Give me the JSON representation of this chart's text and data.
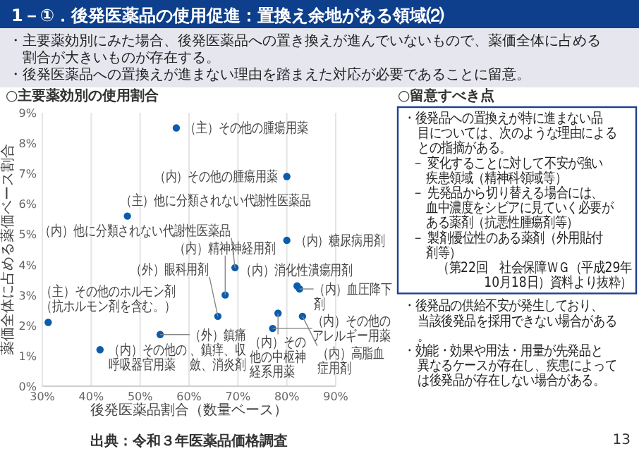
{
  "chart_data": [
    {
      "type": "other",
      "title": "1－①．後発医薬品の使用促進：置換え余地がある領域⑵",
      "annotations": [
        "・主要薬効別にみた場合、後発医薬品への置き換えが進んでいないもので、薬価全体に占める割合が大きいものが存在する。",
        "・後発医薬品への置換えが進まない理由を踏まえた対応が必要であることに留意。"
      ]
    },
    {
      "type": "scatter",
      "title": "○主要薬効別の使用割合",
      "xlabel": "後発医薬品割合（数量ベース）",
      "ylabel": "薬価全体に占める薬価ベース割合",
      "color": "#0b5cad",
      "marker": "circle",
      "grid": "x",
      "x": [
        57.4,
        47.4,
        80.0,
        80.0,
        69.4,
        82.1,
        82.6,
        67.4,
        65.9,
        31.2,
        54.1,
        41.8,
        78.2,
        83.2,
        77.1
      ],
      "values": [
        8.5,
        5.6,
        6.9,
        4.8,
        3.9,
        3.3,
        3.2,
        3.0,
        2.3,
        2.1,
        1.7,
        1.2,
        2.4,
        2.3,
        1.9
      ],
      "xlim": [
        30,
        90
      ],
      "ylim": [
        0,
        9
      ],
      "xticks": [
        {
          "value": 30,
          "label": "30%"
        },
        {
          "value": 40,
          "label": "40%"
        },
        {
          "value": 50,
          "label": "50%"
        },
        {
          "value": 60,
          "label": "60%"
        },
        {
          "value": 70,
          "label": "70%"
        },
        {
          "value": 80,
          "label": "80%"
        },
        {
          "value": 90,
          "label": "90%"
        }
      ],
      "yticks": [
        {
          "value": 0,
          "label": "0%"
        },
        {
          "value": 1,
          "label": "1%"
        },
        {
          "value": 2,
          "label": "2%"
        },
        {
          "value": 3,
          "label": "3%"
        },
        {
          "value": 4,
          "label": "4%"
        },
        {
          "value": 5,
          "label": "5%"
        },
        {
          "value": 6,
          "label": "6%"
        },
        {
          "value": 7,
          "label": "7%"
        },
        {
          "value": 8,
          "label": "8%"
        },
        {
          "value": 9,
          "label": "9%"
        }
      ],
      "annotations": [
        {
          "text": "（主）その他の腫瘍用薬",
          "x": 57.4,
          "y": 8.5
        },
        {
          "text": "（主）他に分類されない代謝性医薬品",
          "x": 47.4,
          "y": 5.6
        },
        {
          "text": "（内）その他の腫瘍用薬",
          "x": 80.0,
          "y": 6.9
        },
        {
          "text": "（内）糖尿病用剤",
          "x": 80.0,
          "y": 4.8
        },
        {
          "text": "（内）他に分類されない代謝性医薬品",
          "x": 69.4,
          "y": 3.9
        },
        {
          "text": "（内）消化性潰瘍用剤",
          "x": 82.1,
          "y": 3.3
        },
        {
          "text": "（内）血圧降下剤",
          "x": 82.6,
          "y": 3.2
        },
        {
          "text": "（内）精神神経用剤",
          "x": 67.4,
          "y": 3.0
        },
        {
          "text": "（外）眼科用剤",
          "x": 65.9,
          "y": 2.3
        },
        {
          "text": "（主）その他のホルモン剤（抗ホルモン剤を含む。）",
          "x": 31.2,
          "y": 2.1
        },
        {
          "text": "（外）鎮痛、鎮痒、収斂、消炎剤",
          "x": 54.1,
          "y": 1.7
        },
        {
          "text": "（内）その他の呼吸器官用薬",
          "x": 41.8,
          "y": 1.2
        },
        {
          "text": "（内）その他の中枢神経系用薬",
          "x": 78.2,
          "y": 2.4
        },
        {
          "text": "（内）高脂血症用剤",
          "x": 83.2,
          "y": 2.3
        },
        {
          "text": "（内）その他のアレルギー用薬",
          "x": 77.1,
          "y": 1.9
        },
        "出典：令和３年医薬品価格調査"
      ]
    },
    {
      "type": "other",
      "title": "○留意すべき点",
      "annotations": [
        "・後発品への置換えが特に進まない品目については、次のような理由によるとの指摘がある。",
        "－ 変化することに対して不安が強い疾患領域（精神科領域等）",
        "－ 先発品から切り替える場合には、血中濃度をシビアに見ていく必要がある薬剤（抗悪性腫瘍剤等）",
        "－ 製剤優位性のある薬剤（外用貼付剤等）",
        "（第22回　社会保障ＷＧ（平成29年10月18日）資料より抜粋）",
        "・後発品の供給不安が発生しており、当該後発品を採用できない場合がある。",
        "・効能・効果や用法・用量が先発品と異なるケースが存在し、疾患によっては後発品が存在しない場合がある。",
        "13"
      ]
    }
  ]
}
